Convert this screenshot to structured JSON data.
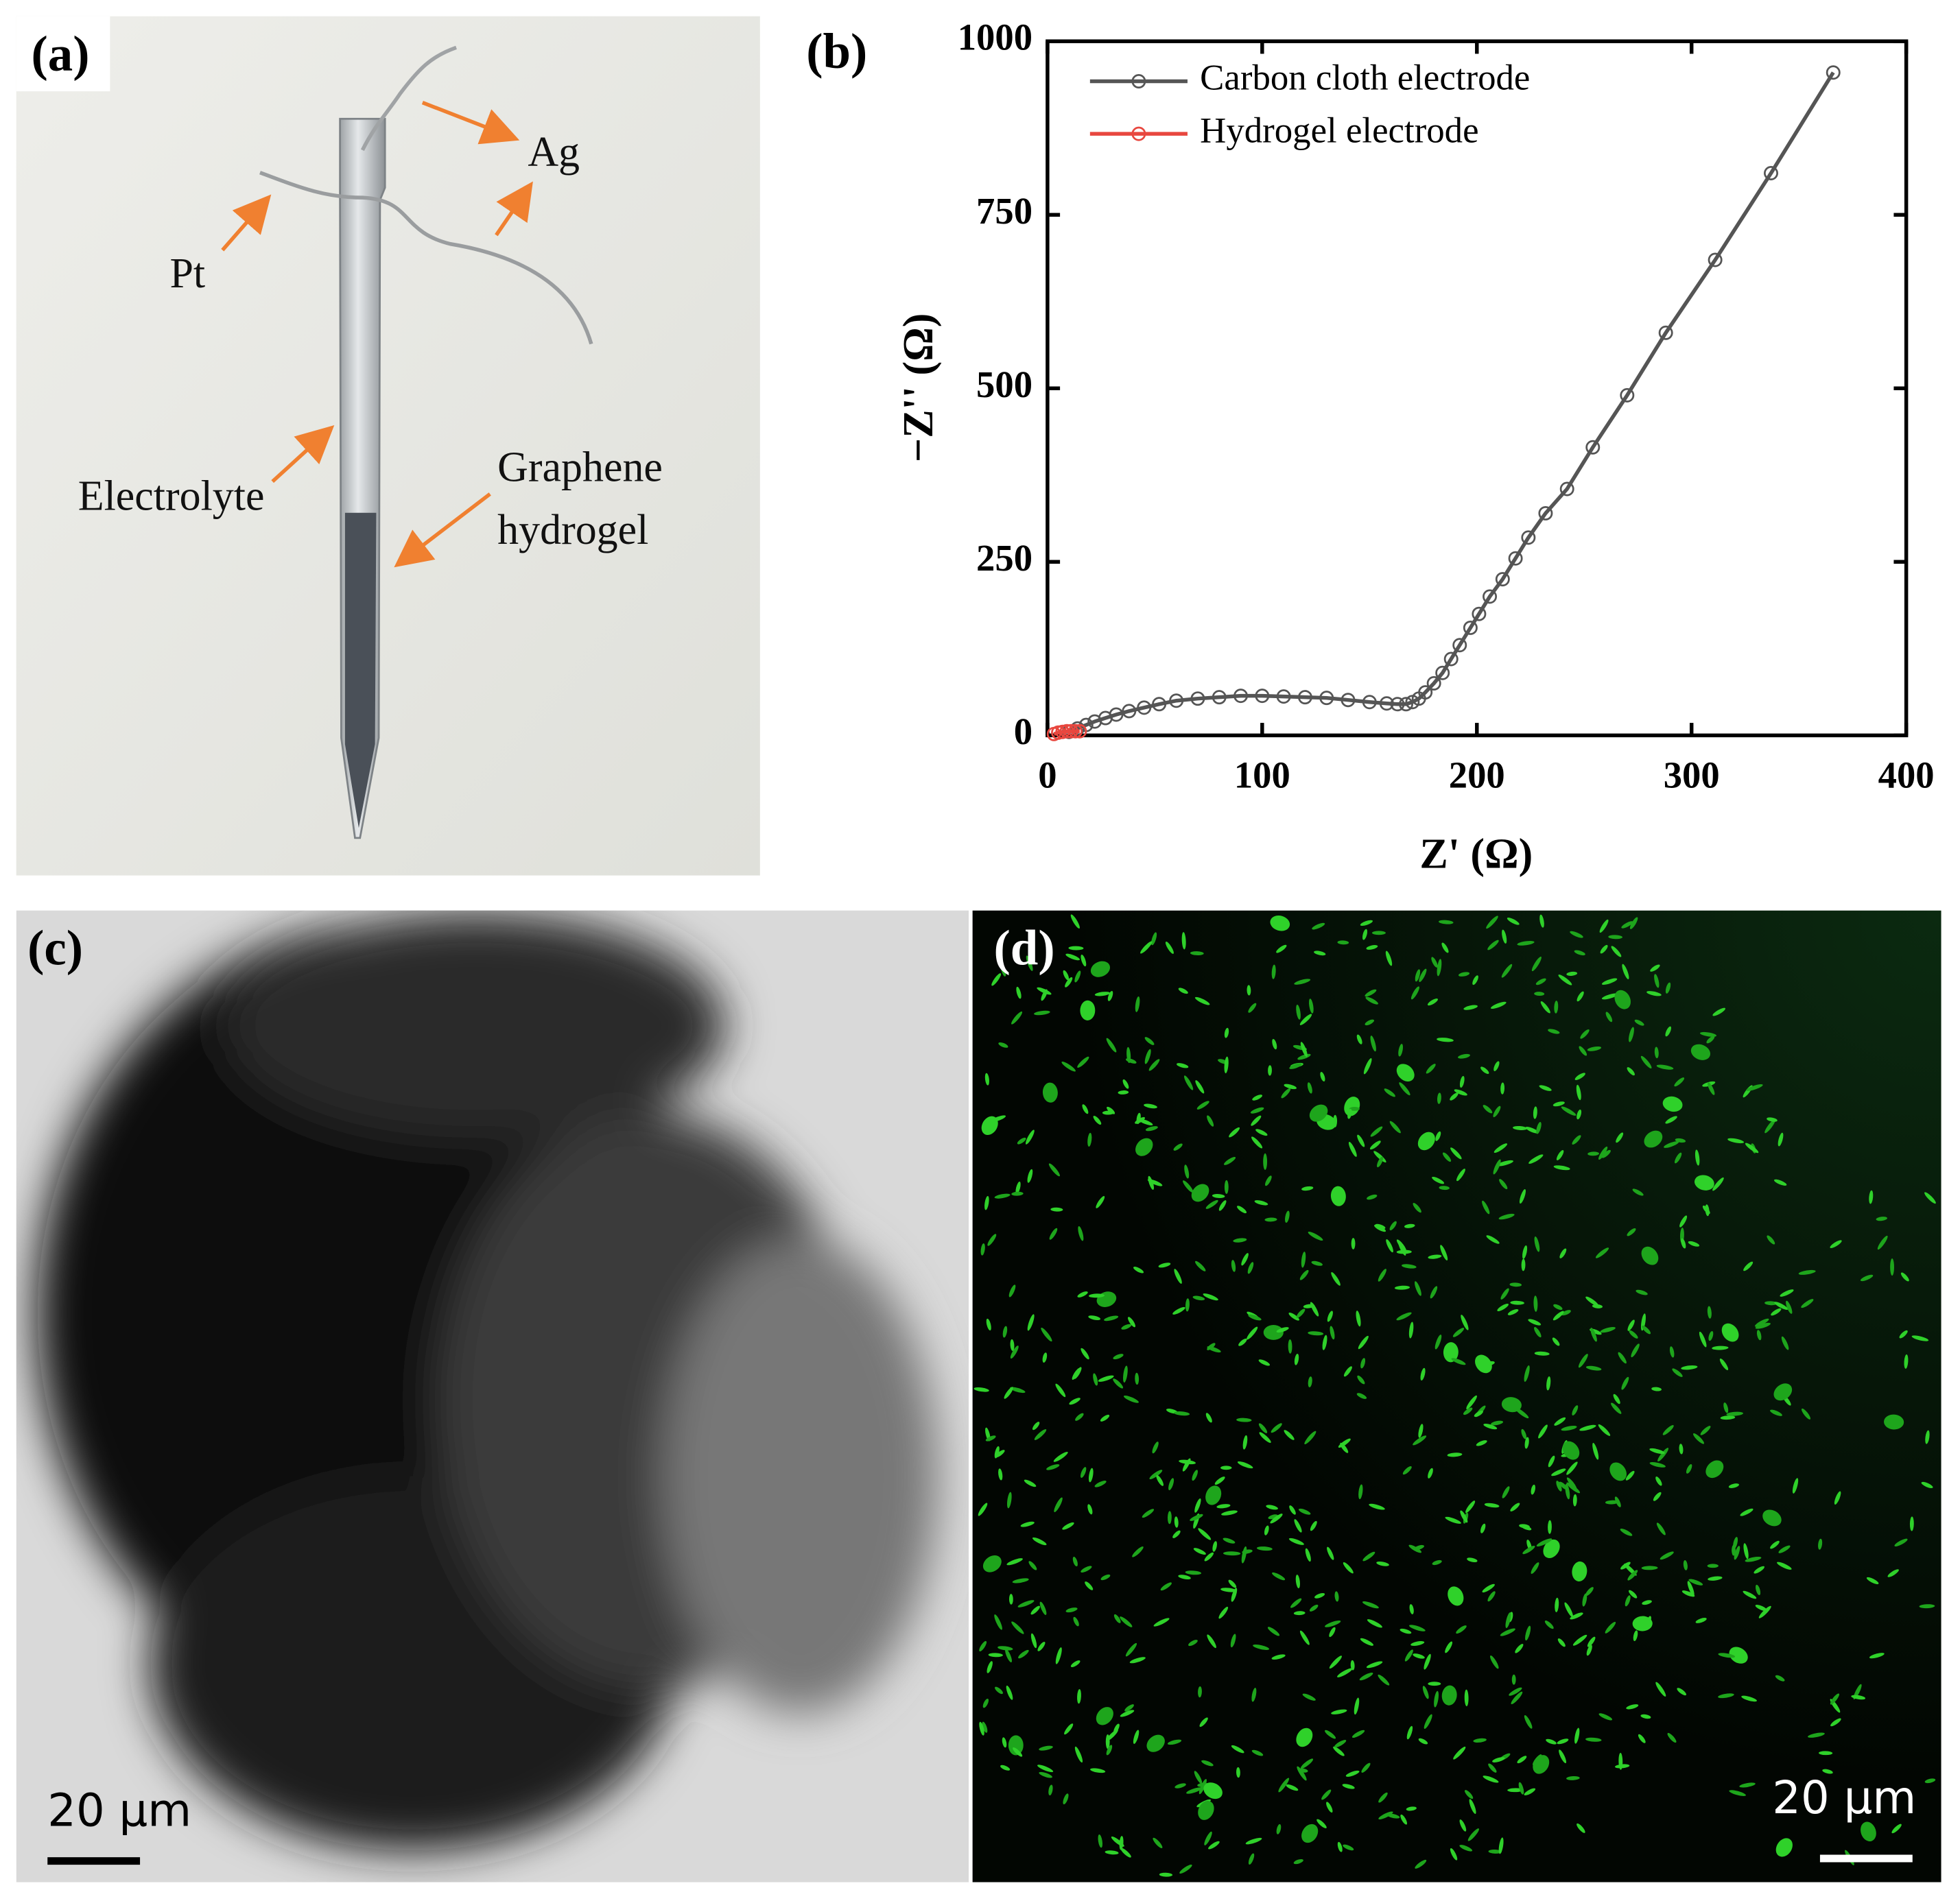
{
  "panels": {
    "a": {
      "label": "(a)",
      "annotations": [
        "Ag",
        "Pt",
        "Electrolyte",
        "Graphene",
        "hydrogel"
      ]
    },
    "c": {
      "label": "(c)",
      "scale_bar": "20 μm"
    },
    "d": {
      "label": "(d)",
      "scale_bar": "20 μm"
    }
  },
  "chart_data": {
    "type": "line",
    "panel_label": "(b)",
    "xlabel": "Z' (Ω)",
    "ylabel": "−Z'' (Ω)",
    "xlim": [
      0,
      400
    ],
    "ylim": [
      0,
      1000
    ],
    "xticks": [
      0,
      100,
      200,
      300,
      400
    ],
    "yticks": [
      0,
      250,
      500,
      750,
      1000
    ],
    "legend": "upper left",
    "series": [
      {
        "name": "Carbon cloth electrode",
        "color": "#555555",
        "x": [
          10,
          14,
          18,
          22,
          27,
          32,
          38,
          45,
          52,
          60,
          70,
          80,
          90,
          100,
          110,
          120,
          130,
          140,
          150,
          158,
          163,
          167,
          170,
          173,
          176,
          180,
          184,
          188,
          192,
          197,
          201,
          206,
          212,
          218,
          224,
          232,
          242,
          254,
          270,
          288,
          311,
          337,
          366
        ],
        "values": [
          5,
          10,
          15,
          20,
          25,
          30,
          35,
          40,
          45,
          50,
          53,
          55,
          57,
          57,
          56,
          55,
          54,
          51,
          48,
          46,
          45,
          45,
          48,
          53,
          62,
          75,
          90,
          110,
          130,
          155,
          175,
          200,
          225,
          255,
          285,
          320,
          355,
          415,
          490,
          580,
          685,
          810,
          955
        ]
      },
      {
        "name": "Hydrogel electrode",
        "color": "#e8473f",
        "x": [
          3,
          5,
          7,
          9,
          11,
          13,
          15
        ],
        "values": [
          2,
          4,
          5,
          6,
          6,
          6,
          6
        ]
      }
    ]
  }
}
